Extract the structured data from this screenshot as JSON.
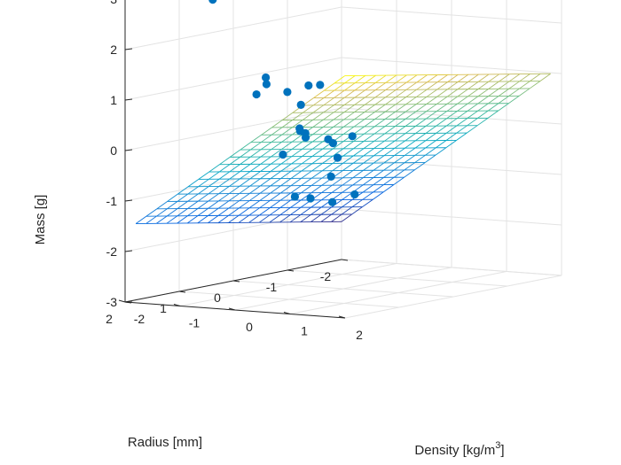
{
  "chart_data": {
    "type": "scatter3d",
    "title": "",
    "xlabel": "Density [kg/m^3]",
    "xlabel_main": "Density [kg/m",
    "xlabel_sup": "3",
    "xlabel_end": "]",
    "ylabel": "Radius [mm]",
    "zlabel": "Mass [g]",
    "xlim": [
      -2,
      2
    ],
    "ylim": [
      -2,
      2
    ],
    "zlim": [
      -3,
      3
    ],
    "x_ticks": [
      "-2",
      "-1",
      "0",
      "1",
      "2"
    ],
    "y_ticks": [
      "-2",
      "-1",
      "0",
      "1",
      "2"
    ],
    "z_ticks": [
      "-3",
      "-2",
      "-1",
      "0",
      "1",
      "2",
      "3"
    ],
    "grid": true,
    "colormap": "parula",
    "marker_color": "#0072BD",
    "fitted_plane": {
      "equation": "z = a + b*x + c*y",
      "a": -0.15,
      "b": 0.85,
      "c": 0.2,
      "x_range": [
        -2,
        1.8
      ],
      "y_range": [
        -2,
        1.8
      ],
      "mesh_divisions": 20
    },
    "points": [
      {
        "x": -0.8,
        "y": 1.6,
        "z": 3.0
      },
      {
        "x": 1.0,
        "y": 1.8,
        "z": 1.1
      },
      {
        "x": -0.3,
        "y": 1.3,
        "z": 1.1
      },
      {
        "x": 1.3,
        "y": 1.6,
        "z": 0.4
      },
      {
        "x": -1.2,
        "y": 0.2,
        "z": 1.0
      },
      {
        "x": -0.5,
        "y": 0.3,
        "z": 0.2
      },
      {
        "x": -0.1,
        "y": 0.6,
        "z": 0.2
      },
      {
        "x": 0.2,
        "y": 0.9,
        "z": 0.2
      },
      {
        "x": 0.6,
        "y": 0.8,
        "z": 0.1
      },
      {
        "x": -2.0,
        "y": -0.6,
        "z": 0.9
      },
      {
        "x": -1.8,
        "y": -1.4,
        "z": 0.6
      },
      {
        "x": -2.1,
        "y": -1.1,
        "z": 0.5
      },
      {
        "x": -2.6,
        "y": -2.0,
        "z": 0.4
      },
      {
        "x": -1.6,
        "y": -1.4,
        "z": -1.2
      },
      {
        "x": -0.4,
        "y": 0.2,
        "z": -1.2
      },
      {
        "x": -0.2,
        "y": 0.0,
        "z": -1.3
      },
      {
        "x": 0.6,
        "y": 0.4,
        "z": -1.0
      },
      {
        "x": 0.3,
        "y": 1.2,
        "z": -0.9
      },
      {
        "x": -2.0,
        "y": -2.2,
        "z": -0.6
      },
      {
        "x": -0.4,
        "y": -0.3,
        "z": -0.5
      },
      {
        "x": 0.2,
        "y": 1.0,
        "z": 0.35
      },
      {
        "x": -1.0,
        "y": 0.1,
        "z": -0.4
      }
    ]
  }
}
